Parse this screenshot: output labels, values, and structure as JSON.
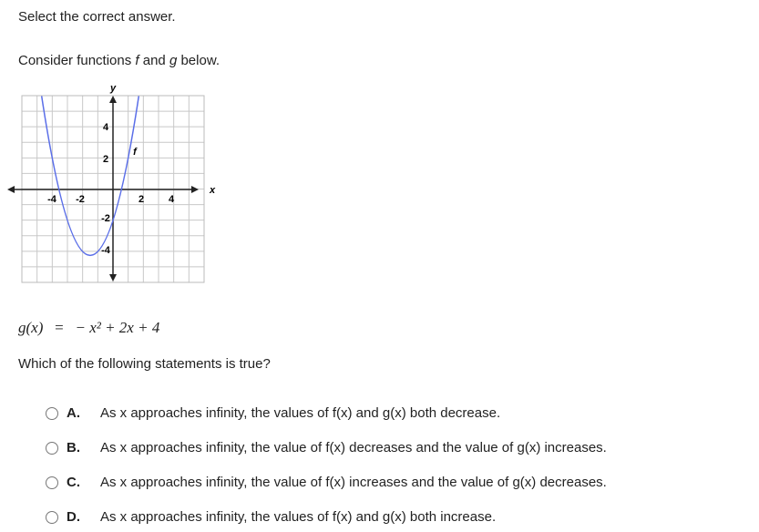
{
  "instruction": "Select the correct answer.",
  "intro": [
    "Consider functions ",
    "f",
    " and ",
    "g",
    " below."
  ],
  "graph": {
    "x_label": "x",
    "y_label": "y",
    "curve_label": "f",
    "x_ticks": [
      "-4",
      "-2",
      "2",
      "4"
    ],
    "y_ticks": [
      "4",
      "2",
      "-2",
      "-4"
    ]
  },
  "equation": {
    "lhs": "g(x)",
    "eq": "=",
    "rhs": "− x² + 2x + 4"
  },
  "question": "Which of the following statements is true?",
  "options": [
    {
      "letter": "A.",
      "text": "As x approaches infinity, the values of f(x) and g(x) both decrease."
    },
    {
      "letter": "B.",
      "text": "As x approaches infinity, the value of f(x) decreases and the value of g(x) increases."
    },
    {
      "letter": "C.",
      "text": "As x approaches infinity, the value of f(x) increases and the value of g(x) decreases."
    },
    {
      "letter": "D.",
      "text": "As x approaches infinity, the values of f(x) and g(x) both increase."
    }
  ]
}
